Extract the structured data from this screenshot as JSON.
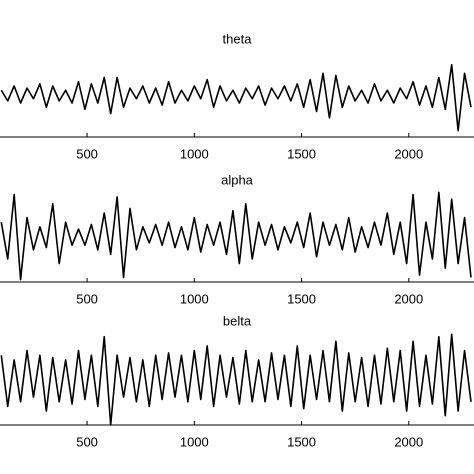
{
  "chart_data": [
    {
      "type": "line",
      "title": "theta",
      "color": "#000000",
      "x": [
        100,
        130,
        160,
        190,
        220,
        250,
        280,
        310,
        340,
        370,
        400,
        430,
        460,
        490,
        520,
        550,
        580,
        610,
        640,
        670,
        700,
        730,
        760,
        790,
        820,
        850,
        880,
        910,
        940,
        970,
        1000,
        1030,
        1060,
        1090,
        1120,
        1150,
        1180,
        1210,
        1240,
        1270,
        1300,
        1330,
        1360,
        1390,
        1420,
        1450,
        1480,
        1510,
        1540,
        1570,
        1600,
        1630,
        1660,
        1690,
        1720,
        1750,
        1780,
        1810,
        1840,
        1870,
        1900,
        1930,
        1960,
        1990,
        2020,
        2050,
        2080,
        2110,
        2140,
        2170,
        2200,
        2230,
        2260,
        2290
      ],
      "values": [
        0.1,
        -0.15,
        0.2,
        -0.2,
        0.15,
        -0.1,
        0.25,
        -0.3,
        0.2,
        -0.15,
        0.1,
        -0.2,
        0.3,
        -0.35,
        0.25,
        -0.2,
        0.4,
        -0.45,
        0.4,
        -0.3,
        0.15,
        -0.1,
        0.2,
        -0.2,
        0.15,
        -0.25,
        0.3,
        -0.2,
        0.1,
        -0.15,
        0.2,
        -0.1,
        0.35,
        -0.3,
        0.2,
        -0.15,
        0.1,
        -0.2,
        0.15,
        -0.1,
        0.2,
        -0.25,
        0.15,
        -0.1,
        0.2,
        -0.15,
        0.25,
        -0.3,
        0.35,
        -0.4,
        0.5,
        -0.55,
        0.45,
        -0.3,
        0.2,
        -0.15,
        0.1,
        -0.2,
        0.25,
        -0.15,
        0.1,
        -0.2,
        0.15,
        -0.1,
        0.3,
        -0.25,
        0.2,
        -0.3,
        0.4,
        -0.35,
        0.7,
        -0.85,
        0.5,
        -0.3
      ],
      "xlim": [
        94,
        2304
      ],
      "ylim": [
        -1,
        1
      ],
      "xticks": [
        500,
        1000,
        1500,
        2000
      ]
    },
    {
      "type": "line",
      "title": "alpha",
      "color": "#000000",
      "x": [
        100,
        130,
        160,
        190,
        220,
        250,
        280,
        310,
        340,
        370,
        400,
        430,
        460,
        490,
        520,
        550,
        580,
        610,
        640,
        670,
        700,
        730,
        760,
        790,
        820,
        850,
        880,
        910,
        940,
        970,
        1000,
        1030,
        1060,
        1090,
        1120,
        1150,
        1180,
        1210,
        1240,
        1270,
        1300,
        1330,
        1360,
        1390,
        1420,
        1450,
        1480,
        1510,
        1540,
        1570,
        1600,
        1630,
        1660,
        1690,
        1720,
        1750,
        1780,
        1810,
        1840,
        1870,
        1900,
        1930,
        1960,
        1990,
        2020,
        2050,
        2080,
        2110,
        2140,
        2170,
        2200,
        2230,
        2260,
        2290
      ],
      "values": [
        0.3,
        -0.5,
        0.9,
        -0.95,
        0.4,
        -0.3,
        0.2,
        -0.25,
        0.7,
        -0.6,
        0.3,
        -0.2,
        0.15,
        -0.2,
        0.25,
        -0.3,
        0.5,
        -0.4,
        0.85,
        -0.9,
        0.6,
        -0.3,
        0.2,
        -0.15,
        0.25,
        -0.2,
        0.3,
        -0.25,
        0.2,
        -0.3,
        0.4,
        -0.35,
        0.25,
        -0.2,
        0.3,
        -0.4,
        0.55,
        -0.6,
        0.7,
        -0.5,
        0.3,
        -0.2,
        0.25,
        -0.3,
        0.2,
        -0.15,
        0.3,
        -0.25,
        0.5,
        -0.45,
        0.3,
        -0.2,
        0.25,
        -0.3,
        0.4,
        -0.35,
        0.2,
        -0.25,
        0.3,
        -0.2,
        0.5,
        -0.4,
        0.3,
        -0.6,
        0.9,
        -0.85,
        0.3,
        -0.5,
        0.95,
        -0.7,
        0.8,
        -0.6,
        0.4,
        -0.9
      ],
      "xlim": [
        94,
        2304
      ],
      "ylim": [
        -1,
        1
      ],
      "xticks": [
        500,
        1000,
        1500,
        2000
      ]
    },
    {
      "type": "line",
      "title": "belta",
      "color": "#000000",
      "x": [
        100,
        130,
        160,
        190,
        220,
        250,
        280,
        310,
        340,
        370,
        400,
        430,
        460,
        490,
        520,
        550,
        580,
        610,
        640,
        670,
        700,
        730,
        760,
        790,
        820,
        850,
        880,
        910,
        940,
        970,
        1000,
        1030,
        1060,
        1090,
        1120,
        1150,
        1180,
        1210,
        1240,
        1270,
        1300,
        1330,
        1360,
        1390,
        1420,
        1450,
        1480,
        1510,
        1540,
        1570,
        1600,
        1630,
        1660,
        1690,
        1720,
        1750,
        1780,
        1810,
        1840,
        1870,
        1900,
        1930,
        1960,
        1990,
        2020,
        2050,
        2080,
        2110,
        2140,
        2170,
        2200,
        2230,
        2260,
        2290
      ],
      "values": [
        0.5,
        -0.6,
        0.4,
        -0.5,
        0.6,
        -0.4,
        0.5,
        -0.7,
        0.45,
        -0.5,
        0.4,
        -0.55,
        0.6,
        -0.45,
        0.5,
        -0.6,
        0.9,
        -1.0,
        0.5,
        -0.4,
        0.45,
        -0.5,
        0.4,
        -0.6,
        0.5,
        -0.45,
        0.55,
        -0.4,
        0.5,
        -0.5,
        0.6,
        -0.45,
        0.7,
        -0.6,
        0.5,
        -0.4,
        0.45,
        -0.55,
        0.6,
        -0.5,
        0.4,
        -0.5,
        0.55,
        -0.45,
        0.5,
        -0.6,
        0.7,
        -0.65,
        0.5,
        -0.45,
        0.6,
        -0.5,
        0.8,
        -0.7,
        0.55,
        -0.5,
        0.45,
        -0.6,
        0.5,
        -0.55,
        0.65,
        -0.5,
        0.6,
        -0.7,
        0.8,
        -0.6,
        0.5,
        -0.55,
        0.9,
        -0.8,
        0.95,
        -0.7,
        0.6,
        -0.5
      ],
      "xlim": [
        94,
        2304
      ],
      "ylim": [
        -1,
        1
      ],
      "xticks": [
        500,
        1000,
        1500,
        2000
      ]
    }
  ]
}
